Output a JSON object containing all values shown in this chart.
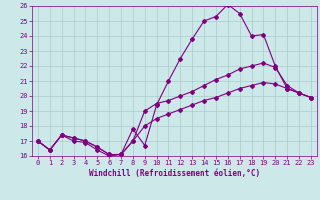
{
  "title": "",
  "xlabel": "Windchill (Refroidissement éolien,°C)",
  "x": [
    0,
    1,
    2,
    3,
    4,
    5,
    6,
    7,
    8,
    9,
    10,
    11,
    12,
    13,
    14,
    15,
    16,
    17,
    18,
    19,
    20,
    21,
    22,
    23
  ],
  "line1": [
    17.0,
    16.4,
    17.4,
    17.0,
    16.9,
    16.4,
    16.0,
    16.1,
    17.8,
    16.7,
    19.4,
    21.0,
    22.5,
    23.8,
    25.0,
    25.3,
    26.1,
    25.5,
    24.0,
    24.1,
    22.0,
    20.5,
    20.2,
    19.9
  ],
  "line2": [
    17.0,
    16.4,
    17.4,
    17.2,
    17.0,
    16.6,
    16.1,
    16.1,
    17.0,
    19.0,
    19.5,
    19.7,
    20.0,
    20.3,
    20.7,
    21.1,
    21.4,
    21.8,
    22.0,
    22.2,
    21.9,
    20.7,
    20.2,
    19.9
  ],
  "line3": [
    17.0,
    16.4,
    17.4,
    17.2,
    17.0,
    16.6,
    16.1,
    16.1,
    17.0,
    18.0,
    18.5,
    18.8,
    19.1,
    19.4,
    19.7,
    19.9,
    20.2,
    20.5,
    20.7,
    20.9,
    20.8,
    20.5,
    20.2,
    19.9
  ],
  "line_color": "#800080",
  "bg_color": "#cce8e8",
  "grid_color": "#aacccc",
  "ylim": [
    16,
    26
  ],
  "xlim": [
    -0.5,
    23.5
  ],
  "yticks": [
    16,
    17,
    18,
    19,
    20,
    21,
    22,
    23,
    24,
    25,
    26
  ],
  "xticks": [
    0,
    1,
    2,
    3,
    4,
    5,
    6,
    7,
    8,
    9,
    10,
    11,
    12,
    13,
    14,
    15,
    16,
    17,
    18,
    19,
    20,
    21,
    22,
    23
  ],
  "tick_fontsize": 5,
  "xlabel_fontsize": 5.5,
  "marker_size": 2.0
}
